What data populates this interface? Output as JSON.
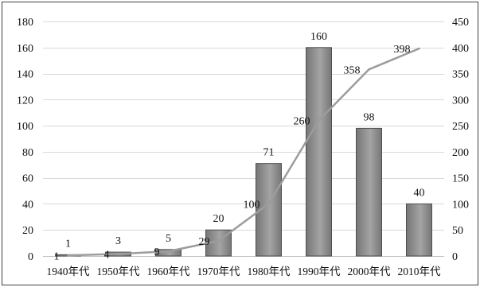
{
  "chart_data": {
    "type": "bar",
    "categories": [
      "1940年代",
      "1950年代",
      "1960年代",
      "1970年代",
      "1980年代",
      "1990年代",
      "2000年代",
      "2010年代"
    ],
    "series": [
      {
        "type": "bar",
        "values": [
          1,
          3,
          5,
          20,
          71,
          160,
          98,
          40
        ]
      },
      {
        "type": "line",
        "secondary_axis": true,
        "values": [
          1,
          4,
          9,
          29,
          100,
          260,
          358,
          398
        ]
      }
    ],
    "y_left": {
      "range": [
        0,
        180
      ],
      "ticks": [
        0,
        20,
        40,
        60,
        80,
        100,
        120,
        140,
        160,
        180
      ]
    },
    "y_right": {
      "range": [
        0,
        450
      ],
      "ticks": [
        0,
        50,
        100,
        150,
        200,
        250,
        300,
        350,
        400,
        450
      ]
    },
    "grid": true,
    "legend": false
  },
  "colors": {
    "bar_fill": "#767676",
    "bar_highlight": "#a4a4a4",
    "bar_edge": "#4f4f4f",
    "line": "#9c9c9c",
    "grid": "#d9d9d9",
    "axis": "#bfbfbf",
    "frame": "#404040"
  }
}
